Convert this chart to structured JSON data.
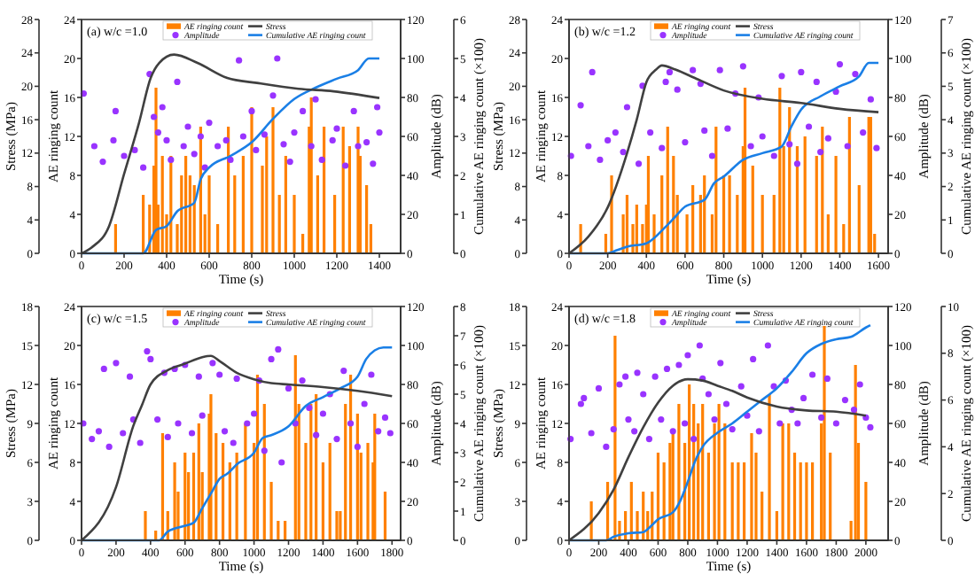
{
  "chart_data": [
    {
      "type": "bar",
      "annotations": [
        "(a) w/c =1.0"
      ],
      "xlabel": "Time (s)",
      "ylabel": "AE ringing count",
      "y2label": "Amplitude (dB)",
      "y3label": "Cumulative AE ringing count (×100)",
      "xlim": [
        0,
        1500
      ],
      "xticks": [
        0,
        200,
        400,
        600,
        800,
        1000,
        1200,
        1400
      ],
      "ylim": [
        0,
        24
      ],
      "yticks": [
        0,
        4,
        8,
        12,
        16,
        20,
        24
      ],
      "y2lim": [
        0,
        120
      ],
      "y2ticks": [
        0,
        20,
        40,
        60,
        80,
        100,
        120
      ],
      "y3lim": [
        0,
        6
      ],
      "y3ticks": [
        0,
        1,
        2,
        3,
        4,
        5,
        6
      ],
      "legend": "top",
      "series": [
        {
          "name": "AE ringing count",
          "color": "#ff8000",
          "x": [
            160,
            290,
            320,
            340,
            350,
            360,
            380,
            400,
            420,
            450,
            470,
            490,
            510,
            530,
            560,
            580,
            600,
            640,
            690,
            720,
            760,
            800,
            850,
            870,
            900,
            930,
            960,
            1000,
            1040,
            1070,
            1080,
            1110,
            1140,
            1190,
            1230,
            1260,
            1300,
            1310,
            1340,
            1360
          ],
          "values": [
            3,
            6,
            5,
            9,
            17,
            5,
            10,
            4,
            10,
            3,
            8,
            10,
            8,
            7,
            13,
            4,
            8,
            3,
            13,
            8,
            10,
            15,
            9,
            12,
            15,
            6,
            10,
            6,
            2,
            13,
            16,
            8,
            13,
            6,
            13,
            11,
            13,
            10,
            7,
            3
          ]
        },
        {
          "name": "Amplitude",
          "type": "scatter",
          "axis": "y2",
          "color": "#9933ff",
          "marker": "circle",
          "x": [
            10,
            60,
            100,
            150,
            160,
            200,
            250,
            290,
            320,
            340,
            360,
            380,
            400,
            420,
            450,
            480,
            500,
            530,
            560,
            580,
            600,
            640,
            680,
            700,
            740,
            760,
            800,
            820,
            860,
            900,
            920,
            950,
            980,
            1000,
            1040,
            1080,
            1100,
            1130,
            1180,
            1200,
            1240,
            1280,
            1300,
            1340,
            1370,
            1390,
            1400
          ],
          "values": [
            82,
            55,
            47,
            58,
            73,
            50,
            53,
            44,
            92,
            70,
            62,
            75,
            58,
            48,
            88,
            55,
            65,
            51,
            60,
            44,
            67,
            55,
            58,
            48,
            99,
            60,
            73,
            53,
            61,
            81,
            100,
            56,
            47,
            62,
            73,
            55,
            79,
            48,
            58,
            64,
            45,
            73,
            55,
            57,
            46,
            75,
            62
          ]
        },
        {
          "name": "Cumulative AE ringing count",
          "type": "line",
          "axis": "y3",
          "color": "#1a7fe6",
          "x": [
            0,
            290,
            350,
            400,
            450,
            530,
            560,
            600,
            700,
            800,
            900,
            1000,
            1100,
            1200,
            1300,
            1350,
            1400
          ],
          "values": [
            0,
            0,
            0.6,
            0.7,
            1.08,
            1.3,
            1.9,
            2.2,
            2.5,
            2.85,
            3.45,
            3.96,
            4.25,
            4.48,
            4.7,
            5,
            5
          ]
        }
      ]
    },
    {
      "type": "line",
      "ylabel": "Stress (MPa)",
      "xlim": [
        0,
        1500
      ],
      "ylim": [
        0,
        28
      ],
      "yticks": [
        0,
        4,
        8,
        12,
        16,
        20,
        24,
        28
      ],
      "tick_labels": "y",
      "legend": "top",
      "series": [
        {
          "name": "Stress",
          "color": "#404040",
          "x": [
            0,
            47,
            130,
            200,
            270,
            325,
            365,
            435,
            545,
            685,
            825,
            1020,
            1185,
            1400
          ],
          "values": [
            0,
            0.7,
            3.3,
            9.5,
            15.6,
            21,
            22.8,
            23.8,
            22.8,
            21,
            20.4,
            19.7,
            19.4,
            18.6
          ]
        }
      ]
    },
    {
      "type": "bar",
      "annotations": [
        "(b) w/c =1.2"
      ],
      "xlabel": "Time (s)",
      "ylabel": "AE ringing count",
      "y2label": "Amplitude (dB)",
      "y3label": "Cumulative AE ringing count (×100)",
      "xlim": [
        0,
        1650
      ],
      "xticks": [
        0,
        200,
        400,
        600,
        800,
        1000,
        1200,
        1400,
        1600
      ],
      "ylim": [
        0,
        24
      ],
      "yticks": [
        0,
        4,
        8,
        12,
        16,
        20,
        24
      ],
      "y2lim": [
        0,
        120
      ],
      "y2ticks": [
        0,
        20,
        40,
        60,
        80,
        100,
        120
      ],
      "y3lim": [
        0,
        7
      ],
      "y3ticks": [
        0,
        1,
        2,
        3,
        4,
        5,
        6,
        7
      ],
      "legend": "top",
      "series": [
        {
          "name": "AE ringing count",
          "color": "#ff8000",
          "x": [
            60,
            190,
            220,
            280,
            300,
            330,
            350,
            380,
            400,
            410,
            440,
            480,
            510,
            540,
            560,
            610,
            640,
            680,
            700,
            740,
            760,
            800,
            830,
            870,
            900,
            910,
            950,
            1000,
            1060,
            1090,
            1110,
            1140,
            1180,
            1220,
            1280,
            1310,
            1340,
            1380,
            1420,
            1450,
            1500,
            1550,
            1560,
            1580
          ],
          "values": [
            3,
            2,
            8,
            4,
            6,
            3,
            5,
            3,
            5,
            10,
            4,
            8,
            13,
            10,
            6,
            4,
            7,
            6,
            8,
            4,
            13,
            8,
            8,
            6,
            11,
            17,
            9,
            6,
            6,
            17,
            11,
            15,
            11,
            12,
            10,
            13,
            4,
            10,
            3,
            14,
            7,
            14,
            14,
            2
          ]
        },
        {
          "name": "Amplitude",
          "type": "scatter",
          "axis": "y2",
          "color": "#9933ff",
          "marker": "circle",
          "x": [
            10,
            60,
            100,
            120,
            160,
            200,
            240,
            280,
            300,
            360,
            380,
            420,
            480,
            500,
            520,
            560,
            600,
            640,
            680,
            700,
            740,
            780,
            820,
            860,
            900,
            940,
            980,
            1000,
            1060,
            1100,
            1140,
            1180,
            1200,
            1240,
            1280,
            1300,
            1340,
            1380,
            1400,
            1440,
            1480,
            1520,
            1560,
            1590
          ],
          "values": [
            50,
            76,
            55,
            93,
            48,
            58,
            62,
            52,
            75,
            46,
            86,
            62,
            54,
            88,
            93,
            84,
            57,
            94,
            87,
            63,
            50,
            94,
            64,
            82,
            96,
            55,
            80,
            60,
            50,
            91,
            56,
            46,
            93,
            65,
            88,
            52,
            59,
            83,
            97,
            55,
            92,
            62,
            79,
            54
          ]
        },
        {
          "name": "Cumulative AE ringing count",
          "type": "line",
          "axis": "y3",
          "color": "#1a7fe6",
          "x": [
            0,
            200,
            250,
            300,
            400,
            500,
            550,
            600,
            700,
            750,
            800,
            900,
            1000,
            1100,
            1150,
            1200,
            1300,
            1400,
            1500,
            1550,
            1600
          ],
          "values": [
            0,
            0,
            0.1,
            0.2,
            0.3,
            0.8,
            1.1,
            1.4,
            1.6,
            2.1,
            2.3,
            2.8,
            3,
            3.2,
            3.8,
            4.3,
            4.7,
            5,
            5.3,
            5.7,
            5.7
          ]
        }
      ]
    },
    {
      "type": "line",
      "ylabel": "Stress (MPa)",
      "xlim": [
        0,
        1650
      ],
      "ylim": [
        0,
        28
      ],
      "yticks": [
        0,
        4,
        8,
        12,
        16,
        20,
        24,
        28
      ],
      "tick_labels": "y",
      "legend": "top",
      "series": [
        {
          "name": "Stress",
          "color": "#404040",
          "x": [
            0,
            100,
            200,
            300,
            350,
            400,
            450,
            480,
            550,
            650,
            800,
            1000,
            1200,
            1400,
            1600
          ],
          "values": [
            0,
            2,
            5.5,
            12,
            16,
            20.5,
            22,
            22.5,
            22,
            21,
            19.5,
            18.5,
            18,
            17.3,
            16.9
          ]
        }
      ]
    },
    {
      "type": "bar",
      "annotations": [
        "(c) w/c =1.5"
      ],
      "xlabel": "Time (s)",
      "ylabel": "AE ringing count",
      "y2label": "Amplitude (dB)",
      "y3label": "Cumulative AE ringing count (×100)",
      "xlim": [
        0,
        1850
      ],
      "xticks": [
        0,
        200,
        400,
        600,
        800,
        1000,
        1200,
        1400,
        1600,
        1800
      ],
      "ylim": [
        0,
        24
      ],
      "yticks": [
        0,
        4,
        8,
        12,
        16,
        20,
        24
      ],
      "y2lim": [
        0,
        120
      ],
      "y2ticks": [
        0,
        20,
        40,
        60,
        80,
        100,
        120
      ],
      "y3lim": [
        0,
        8
      ],
      "y3ticks": [
        0,
        1,
        2,
        3,
        4,
        5,
        6,
        7,
        8
      ],
      "legend": "top",
      "series": [
        {
          "name": "AE ringing count",
          "color": "#ff8000",
          "x": [
            370,
            430,
            470,
            500,
            540,
            560,
            600,
            620,
            650,
            680,
            700,
            740,
            750,
            780,
            820,
            860,
            900,
            950,
            1000,
            1020,
            1060,
            1100,
            1140,
            1180,
            1240,
            1260,
            1300,
            1330,
            1360,
            1400,
            1440,
            1480,
            1500,
            1530,
            1560,
            1600,
            1620,
            1660,
            1690,
            1700,
            1760
          ],
          "values": [
            3,
            1,
            11,
            3,
            8,
            5,
            9,
            7,
            9,
            12,
            7,
            13,
            15,
            11,
            10,
            8,
            9,
            12,
            10,
            17,
            14,
            6,
            2,
            2,
            19,
            14,
            10,
            14,
            15,
            8,
            10,
            3,
            3,
            14,
            17,
            13,
            9,
            10,
            8,
            13,
            5
          ]
        },
        {
          "name": "Amplitude",
          "type": "scatter",
          "axis": "y2",
          "color": "#9933ff",
          "marker": "circle",
          "x": [
            10,
            60,
            100,
            130,
            160,
            200,
            240,
            280,
            300,
            340,
            380,
            400,
            440,
            480,
            500,
            540,
            560,
            600,
            640,
            680,
            700,
            760,
            800,
            830,
            880,
            900,
            960,
            1000,
            1030,
            1060,
            1100,
            1140,
            1160,
            1200,
            1240,
            1280,
            1320,
            1360,
            1400,
            1440,
            1480,
            1520,
            1560,
            1600,
            1640,
            1680,
            1720,
            1760,
            1790
          ],
          "values": [
            60,
            52,
            56,
            88,
            48,
            91,
            55,
            84,
            62,
            50,
            97,
            93,
            62,
            86,
            53,
            88,
            60,
            90,
            55,
            84,
            64,
            91,
            85,
            56,
            50,
            83,
            60,
            65,
            82,
            46,
            93,
            98,
            40,
            78,
            60,
            82,
            68,
            54,
            65,
            75,
            52,
            87,
            60,
            48,
            70,
            85,
            56,
            63,
            55
          ]
        },
        {
          "name": "Cumulative AE ringing count",
          "type": "line",
          "axis": "y3",
          "color": "#1a7fe6",
          "x": [
            0,
            450,
            500,
            600,
            650,
            700,
            750,
            800,
            850,
            900,
            1000,
            1050,
            1100,
            1200,
            1300,
            1400,
            1500,
            1600,
            1650,
            1700,
            1750,
            1800
          ],
          "values": [
            0,
            0,
            0.3,
            0.5,
            0.6,
            1.1,
            1.6,
            2.1,
            2.3,
            2.6,
            3,
            3.5,
            3.6,
            3.9,
            4.6,
            4.9,
            5.2,
            5.6,
            6.2,
            6.5,
            6.6,
            6.6
          ]
        }
      ]
    },
    {
      "type": "line",
      "ylabel": "Stress (MPa)",
      "xlim": [
        0,
        1850
      ],
      "ylim": [
        0,
        18
      ],
      "yticks": [
        0,
        3,
        6,
        9,
        12,
        15,
        18
      ],
      "tick_labels": "y",
      "legend": "top",
      "series": [
        {
          "name": "Stress",
          "color": "#404040",
          "x": [
            0,
            200,
            300,
            350,
            400,
            500,
            600,
            700,
            750,
            800,
            900,
            1000,
            1100,
            1200,
            1400,
            1600,
            1800
          ],
          "values": [
            0,
            4.1,
            8.8,
            10.4,
            12,
            13.1,
            13.6,
            14.1,
            14.2,
            13.8,
            12.9,
            12.4,
            12.1,
            12,
            11.8,
            11.5,
            11.1
          ]
        }
      ]
    },
    {
      "type": "bar",
      "annotations": [
        "(d) w/c =1.8"
      ],
      "xlabel": "Time (s)",
      "ylabel": "AE ringing count",
      "y2label": "Amplitude (dB)",
      "y3label": "Cumulative AE ringing count (×100)",
      "xlim": [
        0,
        2150
      ],
      "xticks": [
        0,
        200,
        400,
        600,
        800,
        1000,
        1200,
        1400,
        1600,
        1800,
        2000
      ],
      "ylim": [
        0,
        24
      ],
      "yticks": [
        0,
        4,
        8,
        12,
        16,
        20,
        24
      ],
      "y2lim": [
        0,
        120
      ],
      "y2ticks": [
        0,
        20,
        40,
        60,
        80,
        100,
        120
      ],
      "y3lim": [
        0,
        10
      ],
      "y3ticks": [
        0,
        2,
        4,
        6,
        8,
        10
      ],
      "legend": "top",
      "series": [
        {
          "name": "AE ringing count",
          "color": "#ff8000",
          "x": [
            150,
            260,
            310,
            340,
            380,
            420,
            460,
            500,
            530,
            560,
            600,
            640,
            680,
            700,
            740,
            780,
            810,
            840,
            870,
            900,
            940,
            980,
            1010,
            1050,
            1100,
            1140,
            1180,
            1230,
            1260,
            1300,
            1350,
            1400,
            1440,
            1480,
            1520,
            1560,
            1600,
            1640,
            1700,
            1720,
            1760,
            1900,
            1930,
            1950,
            2000
          ],
          "values": [
            4,
            6,
            21,
            2,
            3,
            6,
            3,
            5,
            3,
            5,
            9,
            8,
            10,
            11,
            14,
            10,
            16,
            14,
            12,
            14,
            9,
            12,
            14,
            12,
            8,
            8,
            8,
            11,
            9,
            5,
            15,
            3,
            12,
            12,
            9,
            8,
            8,
            8,
            12,
            22,
            9,
            2,
            18,
            10,
            6
          ]
        },
        {
          "name": "Amplitude",
          "type": "scatter",
          "axis": "y2",
          "color": "#9933ff",
          "marker": "circle",
          "x": [
            10,
            80,
            100,
            150,
            200,
            250,
            300,
            340,
            380,
            400,
            440,
            460,
            500,
            540,
            580,
            620,
            660,
            700,
            740,
            780,
            800,
            840,
            880,
            900,
            940,
            980,
            1020,
            1060,
            1100,
            1160,
            1200,
            1240,
            1280,
            1340,
            1380,
            1420,
            1460,
            1500,
            1540,
            1580,
            1640,
            1700,
            1740,
            1800,
            1860,
            1920,
            1960,
            2000,
            2030
          ],
          "values": [
            52,
            70,
            73,
            55,
            78,
            48,
            57,
            80,
            84,
            62,
            56,
            86,
            75,
            52,
            84,
            62,
            88,
            56,
            90,
            60,
            95,
            52,
            100,
            83,
            75,
            62,
            91,
            70,
            57,
            79,
            64,
            93,
            56,
            100,
            79,
            60,
            82,
            67,
            60,
            73,
            85,
            63,
            83,
            60,
            72,
            67,
            80,
            63,
            58
          ]
        },
        {
          "name": "Cumulative AE ringing count",
          "type": "line",
          "axis": "y3",
          "color": "#1a7fe6",
          "x": [
            0,
            250,
            300,
            400,
            500,
            550,
            600,
            700,
            750,
            800,
            850,
            900,
            1000,
            1100,
            1200,
            1300,
            1400,
            1500,
            1600,
            1700,
            1800,
            1900,
            2000,
            2030
          ],
          "values": [
            0,
            0,
            0.15,
            0.3,
            0.35,
            0.6,
            0.9,
            1.2,
            1.7,
            2.5,
            3.4,
            4,
            4.6,
            5,
            5.5,
            6,
            6.5,
            7.2,
            8,
            8.4,
            8.6,
            8.7,
            9.1,
            9.2
          ]
        }
      ]
    },
    {
      "type": "line",
      "ylabel": "Stress (MPa)",
      "xlim": [
        0,
        2150
      ],
      "ylim": [
        0,
        18
      ],
      "yticks": [
        0,
        3,
        6,
        9,
        12,
        15,
        18
      ],
      "tick_labels": "y",
      "legend": "top",
      "series": [
        {
          "name": "Stress",
          "color": "#404040",
          "x": [
            0,
            200,
            300,
            400,
            500,
            600,
            700,
            800,
            900,
            1000,
            1100,
            1200,
            1400,
            1600,
            1800,
            2000
          ],
          "values": [
            0,
            2.1,
            3.9,
            6.4,
            8.7,
            10.6,
            11.9,
            12.4,
            12.3,
            11.9,
            11.5,
            11,
            10.3,
            10,
            9.9,
            9.6
          ]
        }
      ]
    }
  ]
}
